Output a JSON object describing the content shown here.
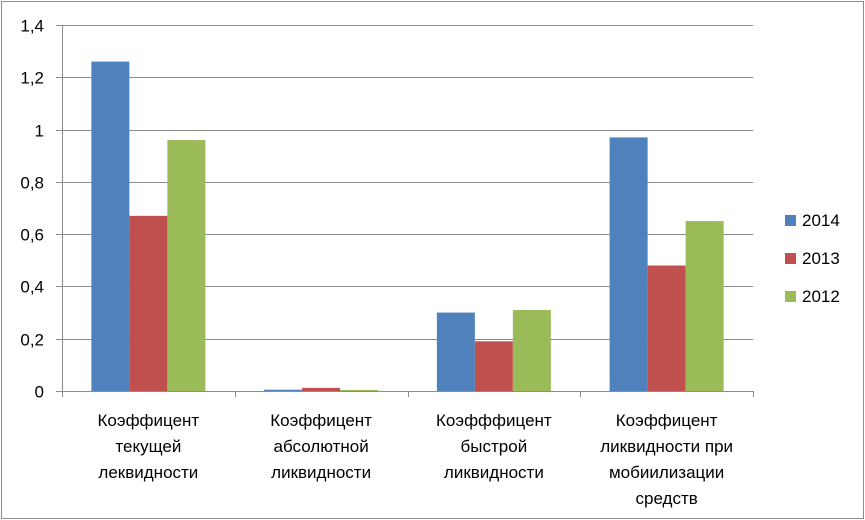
{
  "chart_data": {
    "type": "bar",
    "title": "",
    "xlabel": "",
    "ylabel": "",
    "ylim": [
      0,
      1.4
    ],
    "y_ticks": [
      "0",
      "0,2",
      "0,4",
      "0,6",
      "0,8",
      "1",
      "1,2",
      "1,4"
    ],
    "y_tick_values": [
      0,
      0.2,
      0.4,
      0.6,
      0.8,
      1.0,
      1.2,
      1.4
    ],
    "grid": true,
    "legend_position": "right",
    "categories": [
      [
        "Коэффицент",
        "текущей",
        "леквидности"
      ],
      [
        "Коэффицент",
        "абсолютной",
        "ликвидности"
      ],
      [
        "Коэфффицент",
        "быстрой",
        "ликвидности"
      ],
      [
        "Коэффицент",
        "ликвидности при",
        "мобиилизации",
        "средств"
      ]
    ],
    "series": [
      {
        "name": "2014",
        "color": "#4f81bd",
        "values": [
          1.26,
          0.005,
          0.3,
          0.97
        ]
      },
      {
        "name": "2013",
        "color": "#c0504d",
        "values": [
          0.67,
          0.012,
          0.19,
          0.48
        ]
      },
      {
        "name": "2012",
        "color": "#9bbb59",
        "values": [
          0.96,
          0.004,
          0.31,
          0.65
        ]
      }
    ]
  }
}
